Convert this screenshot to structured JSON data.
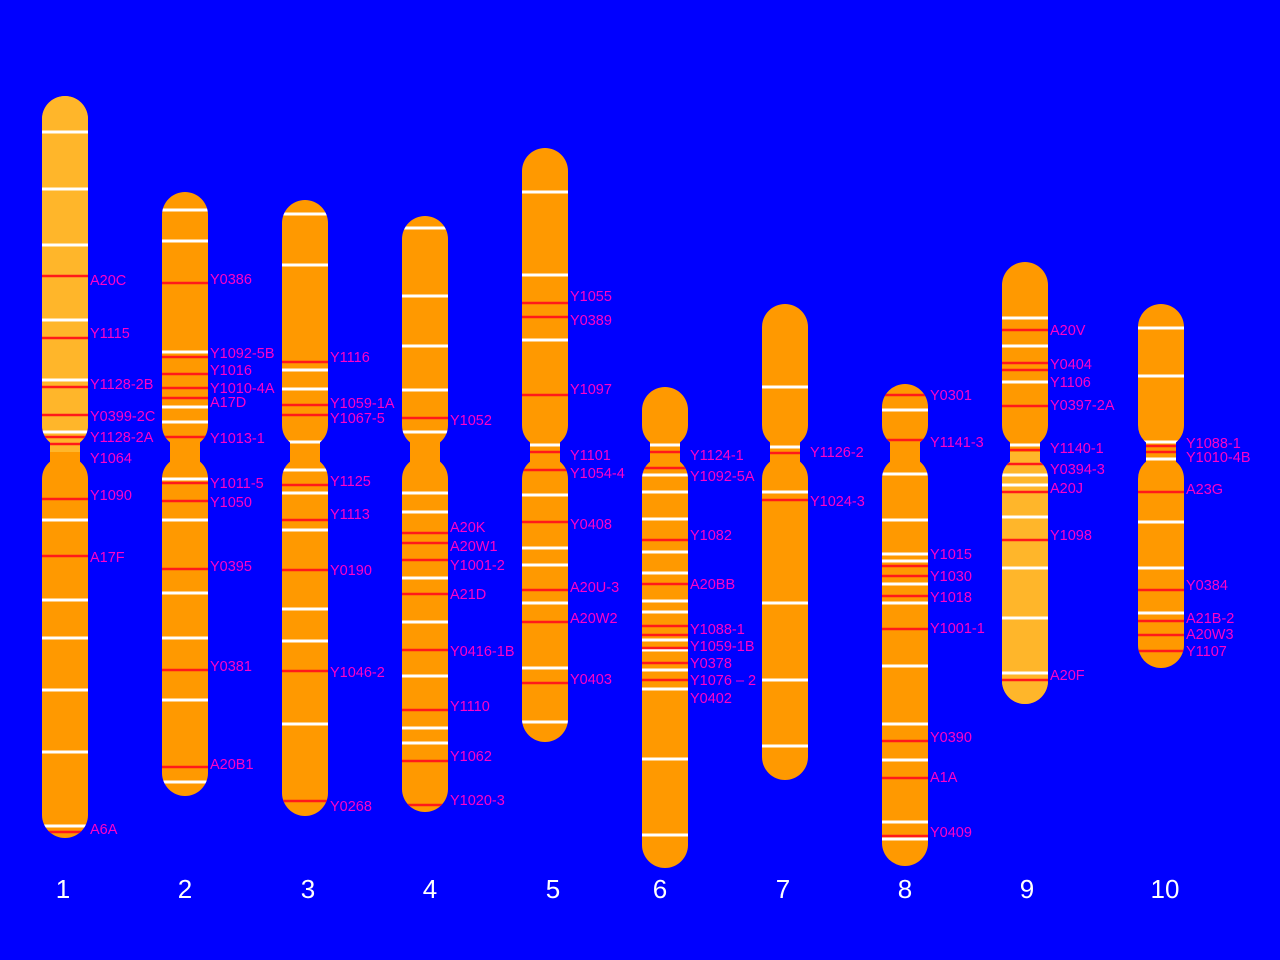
{
  "colors": {
    "background": "#0000ff",
    "chromosome": "#ff9900",
    "chromosome_light": "#ffb62a",
    "band": "#ffffff",
    "marker": "#ff1a1a",
    "label": "#ff00c8",
    "number": "#ffffff"
  },
  "chromosomes": [
    {
      "number": "1",
      "markers": [
        {
          "label": "A20C"
        },
        {
          "label": "Y1115"
        },
        {
          "label": "Y1128-2B"
        },
        {
          "label": "Y0399-2C"
        },
        {
          "label": "Y1128-2A"
        },
        {
          "label": "Y1064"
        },
        {
          "label": "Y1090"
        },
        {
          "label": "A17F"
        },
        {
          "label": "A6A"
        }
      ]
    },
    {
      "number": "2",
      "markers": [
        {
          "label": "Y0386"
        },
        {
          "label": "Y1092-5B"
        },
        {
          "label": "Y1016"
        },
        {
          "label": "Y1010-4A"
        },
        {
          "label": "A17D"
        },
        {
          "label": "Y1013-1"
        },
        {
          "label": "Y1011-5"
        },
        {
          "label": "Y1050"
        },
        {
          "label": "Y0395"
        },
        {
          "label": "Y0381"
        },
        {
          "label": "A20B1"
        }
      ]
    },
    {
      "number": "3",
      "markers": [
        {
          "label": "Y1116"
        },
        {
          "label": "Y1059-1A"
        },
        {
          "label": "Y1067-5"
        },
        {
          "label": "Y1125"
        },
        {
          "label": "Y1113"
        },
        {
          "label": "Y0190"
        },
        {
          "label": "Y1046-2"
        },
        {
          "label": "Y0268"
        }
      ]
    },
    {
      "number": "4",
      "markers": [
        {
          "label": "Y1052"
        },
        {
          "label": "A20K"
        },
        {
          "label": "A20W1"
        },
        {
          "label": "Y1001-2"
        },
        {
          "label": "A21D"
        },
        {
          "label": "Y0416-1B"
        },
        {
          "label": "Y1110"
        },
        {
          "label": "Y1062"
        },
        {
          "label": "Y1020-3"
        }
      ]
    },
    {
      "number": "5",
      "markers": [
        {
          "label": "Y1055"
        },
        {
          "label": "Y0389"
        },
        {
          "label": "Y1097"
        },
        {
          "label": "Y1101"
        },
        {
          "label": "Y1054-4"
        },
        {
          "label": "Y0408"
        },
        {
          "label": "A20U-3"
        },
        {
          "label": "A20W2"
        },
        {
          "label": "Y0403"
        }
      ]
    },
    {
      "number": "6",
      "markers": [
        {
          "label": "Y1124-1"
        },
        {
          "label": "Y1092-5A"
        },
        {
          "label": "Y1082"
        },
        {
          "label": "A20BB"
        },
        {
          "label": "Y1088-1"
        },
        {
          "label": "Y1059-1B"
        },
        {
          "label": "Y0378"
        },
        {
          "label": "Y1076 – 2"
        },
        {
          "label": "Y0402"
        }
      ]
    },
    {
      "number": "7",
      "markers": [
        {
          "label": "Y1126-2"
        },
        {
          "label": "Y1024-3"
        }
      ]
    },
    {
      "number": "8",
      "markers": [
        {
          "label": "Y0301"
        },
        {
          "label": "Y1141-3"
        },
        {
          "label": "Y1015"
        },
        {
          "label": "Y1030"
        },
        {
          "label": "Y1018"
        },
        {
          "label": "Y1001-1"
        },
        {
          "label": "Y0390"
        },
        {
          "label": "A1A"
        },
        {
          "label": "Y0409"
        }
      ]
    },
    {
      "number": "9",
      "markers": [
        {
          "label": "A20V"
        },
        {
          "label": "Y0404"
        },
        {
          "label": "Y1106"
        },
        {
          "label": "Y0397-2A"
        },
        {
          "label": "Y1140-1"
        },
        {
          "label": "Y0394-3"
        },
        {
          "label": "A20J"
        },
        {
          "label": "Y1098"
        },
        {
          "label": "A20F"
        }
      ]
    },
    {
      "number": "10",
      "markers": [
        {
          "label": "Y1088-1"
        },
        {
          "label": "Y1010-4B"
        },
        {
          "label": "A23G"
        },
        {
          "label": "Y0384"
        },
        {
          "label": "A21B-2"
        },
        {
          "label": "A20W3"
        },
        {
          "label": "Y1107"
        }
      ]
    }
  ]
}
